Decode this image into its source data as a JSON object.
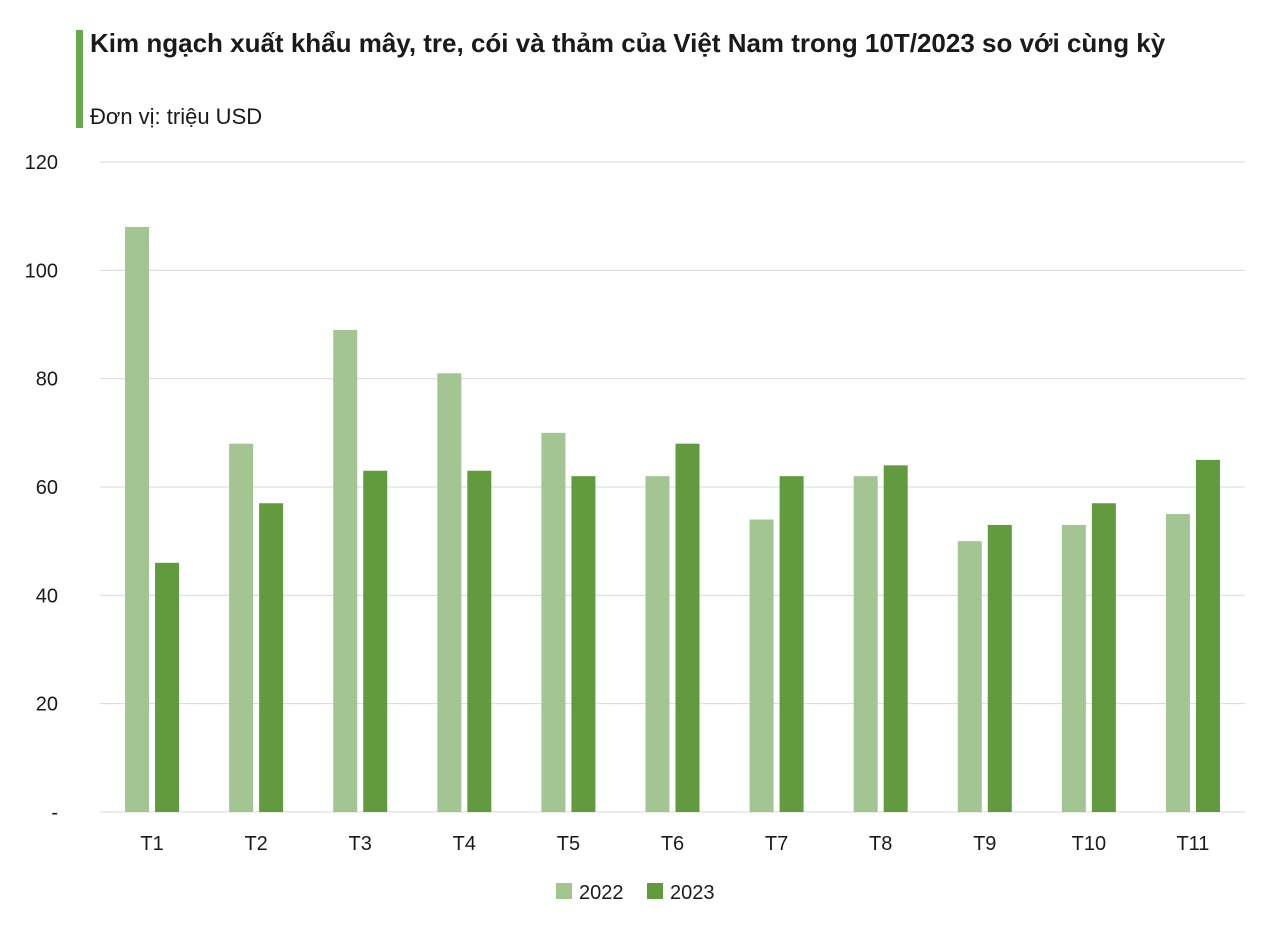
{
  "title": "Kim ngạch xuất khẩu mây, tre, cói và thảm của Việt Nam trong 10T/2023 so với cùng kỳ",
  "subtitle": "Đơn vị: triệu USD",
  "colors": {
    "accent": "#6aa84f",
    "series_2022": "#a3c592",
    "series_2023": "#619b3d",
    "grid": "#d9d9d9"
  },
  "chart_data": {
    "type": "bar",
    "categories": [
      "T1",
      "T2",
      "T3",
      "T4",
      "T5",
      "T6",
      "T7",
      "T8",
      "T9",
      "T10",
      "T11"
    ],
    "series": [
      {
        "name": "2022",
        "values": [
          108,
          68,
          89,
          81,
          70,
          62,
          54,
          62,
          50,
          53,
          55
        ]
      },
      {
        "name": "2023",
        "values": [
          46,
          57,
          63,
          63,
          62,
          68,
          62,
          64,
          53,
          57,
          65
        ]
      }
    ],
    "y_ticks": [
      "-",
      "20",
      "40",
      "60",
      "80",
      "100",
      "120"
    ],
    "ylim": [
      0,
      120
    ],
    "grid": true,
    "legend_position": "bottom-center"
  }
}
